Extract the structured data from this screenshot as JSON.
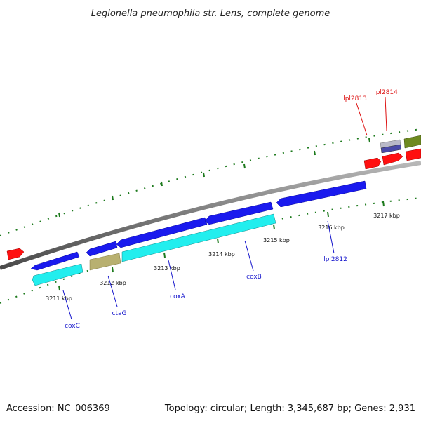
{
  "title": "Legionella pneumophila str. Lens, complete genome",
  "footer": {
    "accession": "Accession: NC_006369",
    "summary": "Topology: circular; Length: 3,345,687 bp; Genes: 2,931"
  },
  "colors": {
    "forward_cds": "#1a1aee",
    "reverse_cds": "#22eeee",
    "olive_cds": "#b8b070",
    "red_gene": "#ff1010",
    "dark_green_gene": "#6e8a20",
    "backbone": "#7f7f7f",
    "tick": "#1d7a1d",
    "label_blue": "#1515cc",
    "label_red": "#dd1111"
  },
  "tick_labels": [
    "3211 kbp",
    "3212 kbp",
    "3213 kbp",
    "3214 kbp",
    "3215 kbp",
    "3216 kbp",
    "3217 kbp"
  ],
  "gene_labels": [
    {
      "text": "coxC",
      "color": "blue"
    },
    {
      "text": "ctaG",
      "color": "blue"
    },
    {
      "text": "coxA",
      "color": "blue"
    },
    {
      "text": "coxB",
      "color": "blue"
    },
    {
      "text": "lpl2812",
      "color": "blue"
    },
    {
      "text": "lpl2813",
      "color": "red"
    },
    {
      "text": "lpl2814",
      "color": "red"
    }
  ]
}
